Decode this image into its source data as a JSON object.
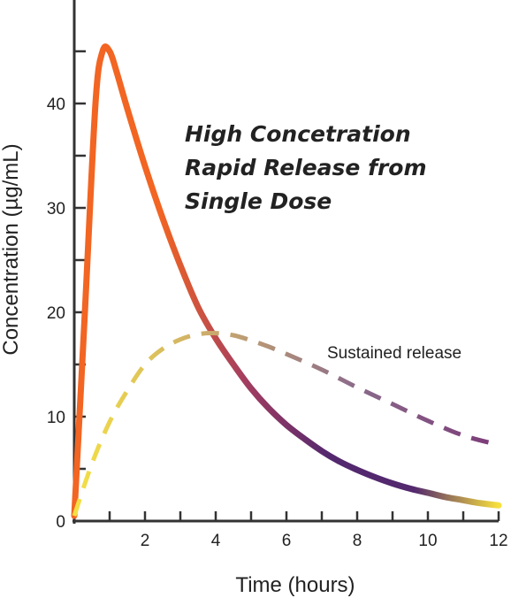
{
  "chart_data": {
    "type": "line",
    "title": "",
    "xlabel": "Time (hours)",
    "ylabel": "Concentration (µg/mL)",
    "xlim": [
      0,
      12
    ],
    "ylim": [
      0,
      50
    ],
    "x_ticks": [
      2,
      4,
      6,
      8,
      10,
      12
    ],
    "y_ticks": [
      0,
      10,
      20,
      30,
      40
    ],
    "grid": false,
    "series": [
      {
        "label_lines": [
          "High Concetration",
          "Rapid Release from",
          "Single Dose"
        ],
        "style": "solid",
        "gradient": [
          "#f26522",
          "#f26522",
          "#a43e60",
          "#53286e",
          "#53286e",
          "#f7e03c"
        ],
        "x": [
          0,
          0.3,
          0.6,
          0.8,
          1.0,
          1.2,
          1.5,
          2.0,
          2.5,
          3.0,
          3.5,
          4.0,
          4.5,
          5.0,
          5.5,
          6.0,
          6.5,
          7.0,
          7.5,
          8.0,
          8.5,
          9.0,
          9.5,
          10.0,
          10.5,
          11.0,
          11.5,
          12.0
        ],
        "y": [
          0.5,
          20,
          40,
          45,
          45,
          43,
          39.5,
          34,
          29,
          24.5,
          20.5,
          17.5,
          15,
          12.7,
          10.8,
          9.2,
          7.9,
          6.7,
          5.7,
          4.9,
          4.2,
          3.6,
          3.1,
          2.7,
          2.3,
          2.0,
          1.7,
          1.5
        ]
      },
      {
        "label": "Sustained release",
        "style": "dashed",
        "gradient": [
          "#f5e044",
          "#c9a96e",
          "#8a6a8a",
          "#7b3a78"
        ],
        "x": [
          0,
          0.5,
          1,
          1.5,
          2,
          2.5,
          3,
          3.5,
          4,
          4.5,
          5,
          5.5,
          6,
          7,
          8,
          9,
          10,
          11,
          12
        ],
        "y": [
          0.5,
          5.5,
          9.5,
          12.5,
          15,
          16.5,
          17.4,
          17.9,
          18,
          17.8,
          17.3,
          16.7,
          16,
          14.5,
          12.8,
          11.2,
          9.6,
          8.2,
          7.3
        ]
      }
    ]
  }
}
